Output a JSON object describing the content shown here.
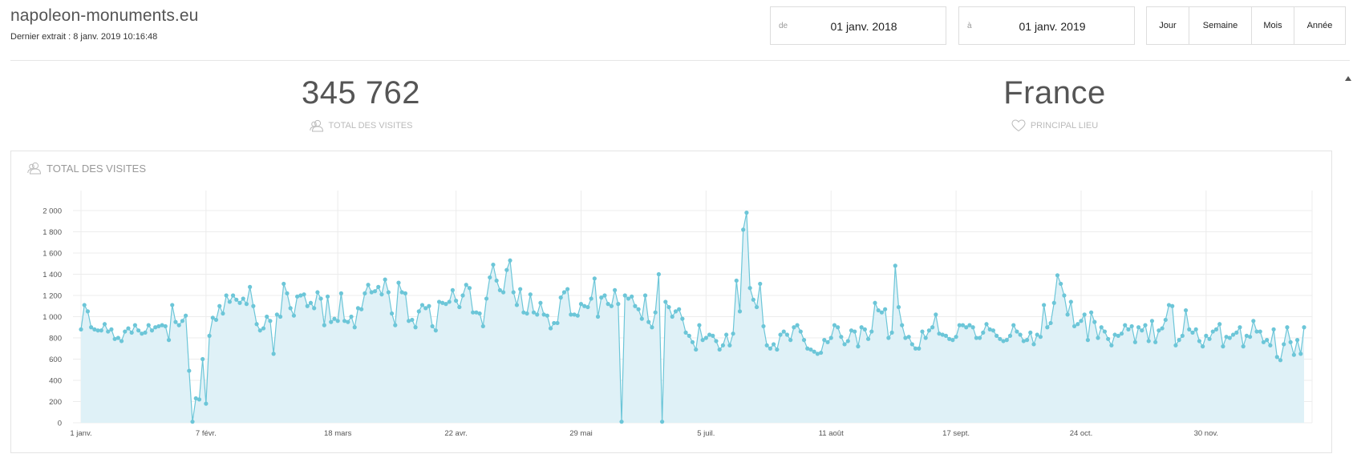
{
  "header": {
    "site_title": "napoleon-monuments.eu",
    "last_extract": "Dernier extrait : 8 janv. 2019 10:16:48"
  },
  "date_range": {
    "from_label": "de",
    "from_value": "01 janv. 2018",
    "to_label": "à",
    "to_value": "01 janv. 2019"
  },
  "period_buttons": [
    "Jour",
    "Semaine",
    "Mois",
    "Année"
  ],
  "kpis": {
    "total_visits_value": "345 762",
    "total_visits_label": "TOTAL DES VISITES",
    "main_place_value": "France",
    "main_place_label": "PRINCIPAL LIEU"
  },
  "panel": {
    "title": "TOTAL DES VISITES"
  },
  "icons": {
    "visits": "users-icon",
    "place": "heart-icon"
  },
  "colors": {
    "series": "#6cc6d8",
    "fill": "#dff1f7",
    "grid": "#ececec"
  },
  "chart_data": {
    "type": "area",
    "title": "TOTAL DES VISITES",
    "xlabel": "",
    "ylabel": "",
    "ylim": [
      0,
      2000
    ],
    "yticks": [
      0,
      200,
      400,
      600,
      800,
      1000,
      1200,
      1400,
      1600,
      1800,
      2000
    ],
    "ytick_labels": [
      "0",
      "200",
      "400",
      "600",
      "800",
      "1 000",
      "1 200",
      "1 400",
      "1 600",
      "1 800",
      "2 000"
    ],
    "x_tick_labels": [
      {
        "day": 0,
        "label": "1 janv."
      },
      {
        "day": 37,
        "label": "7 févr."
      },
      {
        "day": 76,
        "label": "18 mars"
      },
      {
        "day": 111,
        "label": "22 avr."
      },
      {
        "day": 148,
        "label": "29 mai"
      },
      {
        "day": 185,
        "label": "5 juil."
      },
      {
        "day": 222,
        "label": "11 août"
      },
      {
        "day": 259,
        "label": "17 sept."
      },
      {
        "day": 296,
        "label": "24 oct."
      },
      {
        "day": 333,
        "label": "30 nov."
      }
    ],
    "x_start": "2018-01-01",
    "granularity": "day",
    "series": [
      {
        "values": [
          880,
          1110,
          1050,
          900,
          880,
          870,
          870,
          930,
          860,
          880,
          790,
          800,
          770,
          860,
          890,
          850,
          920,
          870,
          840,
          850,
          920,
          870,
          900,
          910,
          920,
          910,
          780,
          1110,
          950,
          920,
          960,
          1010,
          490,
          10,
          230,
          220,
          600,
          180,
          820,
          990,
          970,
          1100,
          1030,
          1200,
          1140,
          1200,
          1160,
          1130,
          1170,
          1120,
          1280,
          1100,
          930,
          870,
          890,
          1000,
          960,
          650,
          1020,
          1000,
          1310,
          1220,
          1080,
          1010,
          1190,
          1200,
          1210,
          1100,
          1130,
          1080,
          1230,
          1170,
          920,
          1190,
          950,
          980,
          960,
          1220,
          960,
          950,
          1000,
          900,
          1080,
          1070,
          1220,
          1300,
          1230,
          1240,
          1280,
          1210,
          1350,
          1230,
          1030,
          920,
          1320,
          1230,
          1220,
          960,
          970,
          900,
          1050,
          1110,
          1080,
          1100,
          910,
          870,
          1140,
          1130,
          1120,
          1140,
          1250,
          1150,
          1090,
          1200,
          1300,
          1270,
          1040,
          1040,
          1030,
          910,
          1170,
          1370,
          1490,
          1340,
          1250,
          1230,
          1440,
          1530,
          1230,
          1110,
          1260,
          1040,
          1030,
          1210,
          1040,
          1020,
          1130,
          1020,
          1010,
          890,
          940,
          940,
          1180,
          1230,
          1260,
          1020,
          1020,
          1010,
          1120,
          1100,
          1090,
          1170,
          1360,
          1000,
          1180,
          1200,
          1120,
          1100,
          1250,
          1120,
          10,
          1200,
          1170,
          1190,
          1100,
          1070,
          980,
          1200,
          950,
          900,
          1040,
          1400,
          10,
          1140,
          1090,
          1000,
          1050,
          1070,
          980,
          850,
          820,
          760,
          690,
          920,
          780,
          800,
          830,
          820,
          770,
          690,
          730,
          830,
          730,
          840,
          1340,
          1050,
          1820,
          1980,
          1270,
          1160,
          1090,
          1310,
          910,
          730,
          700,
          740,
          690,
          830,
          860,
          830,
          780,
          900,
          920,
          860,
          780,
          700,
          690,
          670,
          650,
          660,
          780,
          760,
          800,
          920,
          900,
          810,
          740,
          770,
          870,
          860,
          720,
          900,
          880,
          790,
          860,
          1130,
          1060,
          1040,
          1070,
          800,
          850,
          1480,
          1090,
          920,
          800,
          810,
          740,
          700,
          700,
          860,
          800,
          870,
          900,
          1020,
          840,
          830,
          820,
          790,
          780,
          810,
          920,
          920,
          900,
          920,
          900,
          800,
          800,
          850,
          930,
          880,
          870,
          820,
          790,
          770,
          780,
          820,
          920,
          860,
          830,
          770,
          780,
          850,
          740,
          830,
          810,
          1110,
          900,
          940,
          1130,
          1390,
          1310,
          1200,
          1020,
          1140,
          910,
          930,
          960,
          1020,
          780,
          1040,
          950,
          800,
          900,
          860,
          790,
          730,
          830,
          820,
          840,
          920,
          880,
          910,
          760,
          900,
          870,
          920,
          770,
          960,
          760,
          870,
          890,
          970,
          1110,
          1100,
          730,
          780,
          820,
          1060,
          880,
          850,
          880,
          770,
          720,
          820,
          790,
          860,
          880,
          930,
          720,
          810,
          800,
          830,
          850,
          900,
          720,
          820,
          810,
          960,
          860,
          860,
          760,
          780,
          730,
          880,
          620,
          590,
          740,
          900,
          760,
          640,
          780,
          650,
          900
        ]
      }
    ]
  }
}
